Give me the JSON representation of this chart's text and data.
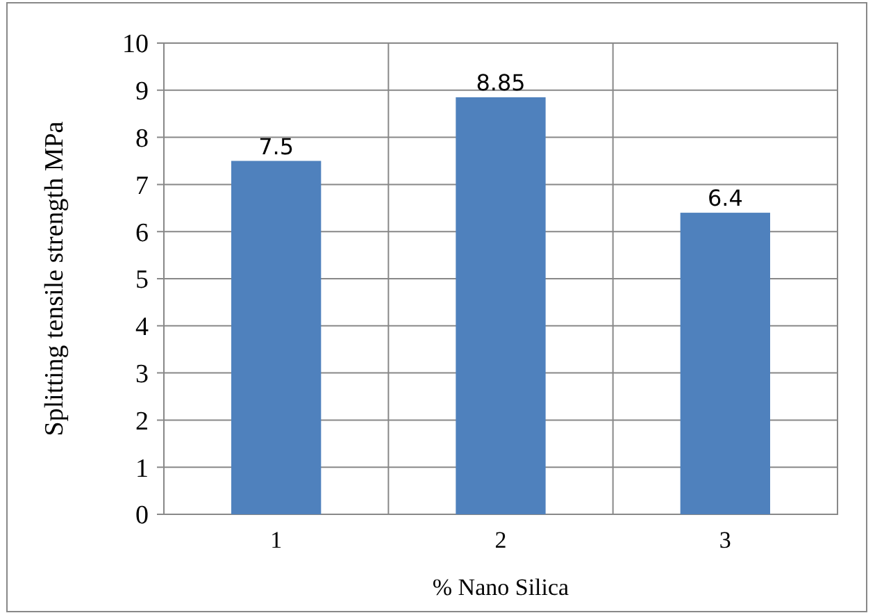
{
  "chart_data": {
    "type": "bar",
    "xlabel": "% Nano Silica",
    "ylabel": "Splitting tensile strength MPa",
    "categories": [
      "1",
      "2",
      "3"
    ],
    "values": [
      7.5,
      8.85,
      6.4
    ],
    "color": "#4f81bd",
    "ylim": [
      0,
      10
    ],
    "yticks": [
      0,
      1,
      2,
      3,
      4,
      5,
      6,
      7,
      8,
      9,
      10
    ],
    "grid": true,
    "data_labels": true
  }
}
